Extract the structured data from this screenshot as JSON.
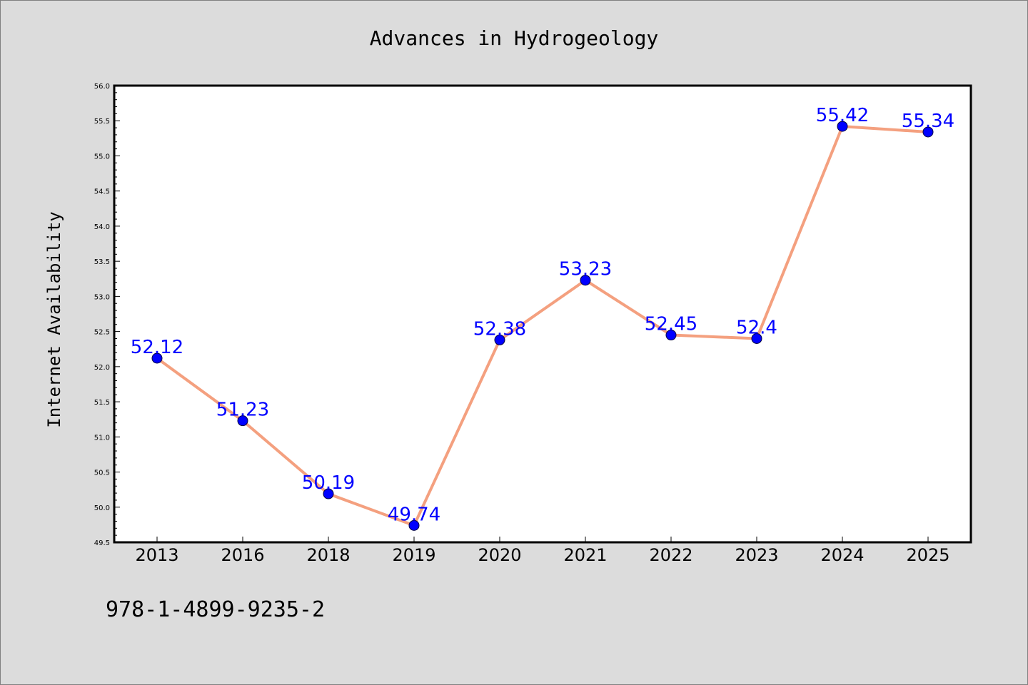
{
  "chart_data": {
    "type": "line",
    "title": "Advances in Hydrogeology",
    "xlabel": "",
    "ylabel": "Internet Availability",
    "categories": [
      "2013",
      "2016",
      "2018",
      "2019",
      "2020",
      "2021",
      "2022",
      "2023",
      "2024",
      "2025"
    ],
    "values": [
      52.12,
      51.23,
      50.19,
      49.74,
      52.38,
      53.23,
      52.45,
      52.4,
      55.42,
      55.34
    ],
    "data_labels": [
      "52.12",
      "51.23",
      "50.19",
      "49.74",
      "52.38",
      "53.23",
      "52.45",
      "52.4",
      "55.42",
      "55.34"
    ],
    "ylim": [
      49.5,
      56.0
    ],
    "yticks": [
      "49.5",
      "50.0",
      "50.5",
      "51.0",
      "51.5",
      "52.0",
      "52.5",
      "53.0",
      "53.5",
      "54.0",
      "54.5",
      "55.0",
      "55.5",
      "56.0"
    ],
    "grid": false,
    "legend": "none",
    "line_color": "#f4a07f",
    "marker_color": "#0000ff",
    "label_color": "#0000ff"
  },
  "footer": {
    "isbn": "978-1-4899-9235-2"
  }
}
